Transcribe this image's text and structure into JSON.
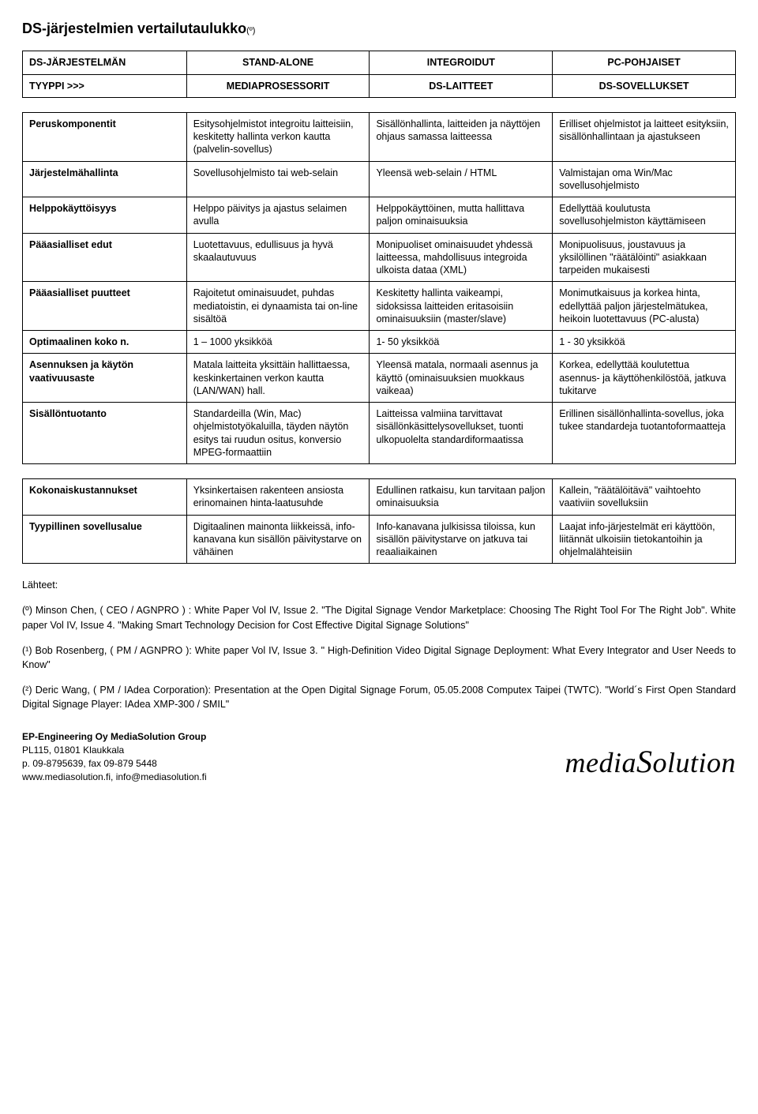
{
  "title": "DS-järjestelmien vertailutaulukko",
  "title_note": "(º)",
  "header_row1": {
    "c1": "DS-JÄRJESTELMÄN",
    "c2": "STAND-ALONE",
    "c3": "INTEGROIDUT",
    "c4": "PC-POHJAISET"
  },
  "header_row2": {
    "c1": "TYYPPI >>>",
    "c2": "MEDIAPROSESSORIT",
    "c3": "DS-LAITTEET",
    "c4": "DS-SOVELLUKSET"
  },
  "rows_block1": [
    {
      "label": "Peruskomponentit",
      "c2": "Esitysohjelmistot integroitu laitteisiin, keskitetty hallinta verkon kautta (palvelin-sovellus)",
      "c3": "Sisällönhallinta, laitteiden ja näyttöjen ohjaus samassa laitteessa",
      "c4": "Erilliset ohjelmistot ja laitteet esityksiin, sisällönhallintaan ja ajastukseen"
    },
    {
      "label": "Järjestelmähallinta",
      "c2": "Sovellusohjelmisto tai web-selain",
      "c3": "Yleensä web-selain / HTML",
      "c4": "Valmistajan oma Win/Mac sovellusohjelmisto"
    },
    {
      "label": "Helppokäyttöisyys",
      "c2": "Helppo päivitys ja ajastus selaimen avulla",
      "c3": "Helppokäyttöinen, mutta hallittava paljon ominaisuuksia",
      "c4": "Edellyttää koulutusta sovellusohjelmiston käyttämiseen"
    },
    {
      "label": "Pääasialliset edut",
      "c2": "Luotettavuus, edullisuus ja hyvä skaalautuvuus",
      "c3": "Monipuoliset ominaisuudet yhdessä laitteessa, mahdollisuus integroida ulkoista dataa (XML)",
      "c4": "Monipuolisuus, joustavuus ja yksilöllinen \"räätälöinti\" asiakkaan tarpeiden mukaisesti"
    },
    {
      "label": "Pääasialliset puutteet",
      "c2": "Rajoitetut ominaisuudet, puhdas mediatoistin, ei dynaamista tai on-line sisältöä",
      "c3": "Keskitetty hallinta vaikeampi, sidoksissa laitteiden eritasoisiin ominaisuuksiin (master/slave)",
      "c4": "Monimutkaisuus ja korkea hinta, edellyttää paljon järjestelmätukea, heikoin luotettavuus (PC-alusta)"
    },
    {
      "label": "Optimaalinen koko n.",
      "c2": "1 – 1000 yksikköä",
      "c3": "1- 50 yksikköä",
      "c4": "1 - 30 yksikköä"
    },
    {
      "label": "Asennuksen ja käytön vaativuusaste",
      "c2": "Matala laitteita yksittäin hallittaessa, keskinkertainen verkon kautta (LAN/WAN) hall.",
      "c3": "Yleensä matala, normaali asennus ja käyttö (ominaisuuksien muokkaus vaikeaa)",
      "c4": "Korkea, edellyttää koulutettua asennus- ja käyttöhenkilöstöä, jatkuva tukitarve"
    },
    {
      "label": "Sisällöntuotanto",
      "c2": "Standardeilla (Win, Mac) ohjelmistotyökaluilla, täyden näytön esitys tai ruudun ositus, konversio MPEG-formaattiin",
      "c3": "Laitteissa valmiina tarvittavat sisällönkäsittelysovellukset, tuonti ulkopuolelta standardiformaatissa",
      "c4": "Erillinen sisällönhallinta-sovellus, joka tukee standardeja tuotantoformaatteja"
    }
  ],
  "rows_block2": [
    {
      "label": "Kokonaiskustannukset",
      "c2": "Yksinkertaisen rakenteen ansiosta erinomainen hinta-laatusuhde",
      "c3": "Edullinen ratkaisu, kun tarvitaan paljon ominaisuuksia",
      "c4": "Kallein, \"räätälöitävä\" vaihtoehto vaativiin sovelluksiin"
    },
    {
      "label": "Tyypillinen sovellusalue",
      "c2": "Digitaalinen mainonta liikkeissä, info-kanavana kun sisällön päivitystarve on vähäinen",
      "c3": "Info-kanavana julkisissa tiloissa, kun sisällön päivitystarve on jatkuva tai reaaliaikainen",
      "c4": "Laajat info-järjestelmät eri käyttöön, liitännät ulkoisiin tietokantoihin ja ohjelmalähteisiin"
    }
  ],
  "sources_label": "Lähteet:",
  "sources": [
    "(º) Minson Chen, ( CEO / AGNPRO ) : White Paper Vol IV, Issue 2. \"The Digital Signage Vendor Marketplace: Choosing The Right Tool For The Right Job\". White paper Vol IV, Issue 4. \"Making Smart Technology Decision for Cost Effective Digital Signage Solutions\"",
    "(¹) Bob Rosenberg, ( PM / AGNPRO ): White paper Vol IV, Issue 3. \" High-Definition Video Digital Signage Deployment: What Every Integrator and User Needs to Know\"",
    "(²) Deric Wang, ( PM / IAdea Corporation): Presentation at the Open Digital Signage Forum, 05.05.2008 Computex Taipei (TWTC). \"World´s First Open Standard Digital Signage Player: IAdea XMP-300 / SMIL\""
  ],
  "contact": {
    "line1": "EP-Engineering Oy MediaSolution Group",
    "line2": "PL115, 01801 Klaukkala",
    "line3": "p. 09-8795639, fax 09-879 5448",
    "line4": "www.mediasolution.fi, info@mediasolution.fi"
  },
  "logo_text": "mediaSolution"
}
